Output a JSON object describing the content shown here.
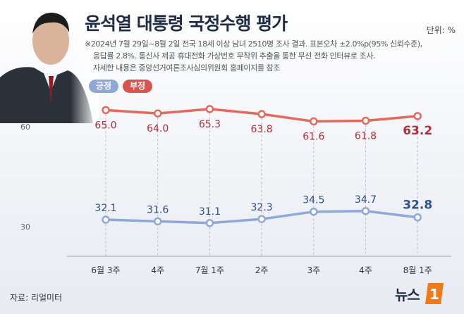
{
  "header": {
    "title": "윤석열 대통령 국정수행 평가",
    "unit": "단위: %"
  },
  "note": {
    "line1": "※2024년 7월 29일~8월 2일 전국 18세 이상 남녀 2510명 조사 결과. 표본오차 ±2.0%p(95% 신뢰수준),",
    "line2": "응답률 2.8%. 통신사 제공 휴대전화 가상번호 무작위 추출을 통한 무선 전화 인터뷰로 조사.",
    "line3": "자세한 내용은 중앙선거여론조사심의위원회 홈페이지를 참조"
  },
  "legend": {
    "positive": "긍정",
    "negative": "부정"
  },
  "footer": {
    "source": "자료: 리얼미터",
    "brand": "뉴스",
    "brand_mark": "1"
  },
  "colors": {
    "positive": "#8fa8d8",
    "positive_label": "#2d4f8e",
    "negative": "#e06a5c",
    "negative_label": "#b0303a",
    "brand": "#f07a1a"
  },
  "chart_data": {
    "type": "line",
    "title": "윤석열 대통령 국정수행 평가",
    "categories": [
      "6월 3주",
      "4주",
      "7월 1주",
      "2주",
      "3주",
      "4주",
      "8월 1주"
    ],
    "series": [
      {
        "name": "긍정",
        "values": [
          32.1,
          31.6,
          31.1,
          32.3,
          34.5,
          34.7,
          32.8
        ]
      },
      {
        "name": "부정",
        "values": [
          65.0,
          64.0,
          65.3,
          63.8,
          61.6,
          61.8,
          63.2
        ]
      }
    ],
    "y_ticks": [
      30,
      60
    ],
    "grid": false,
    "legend": "top-left"
  }
}
